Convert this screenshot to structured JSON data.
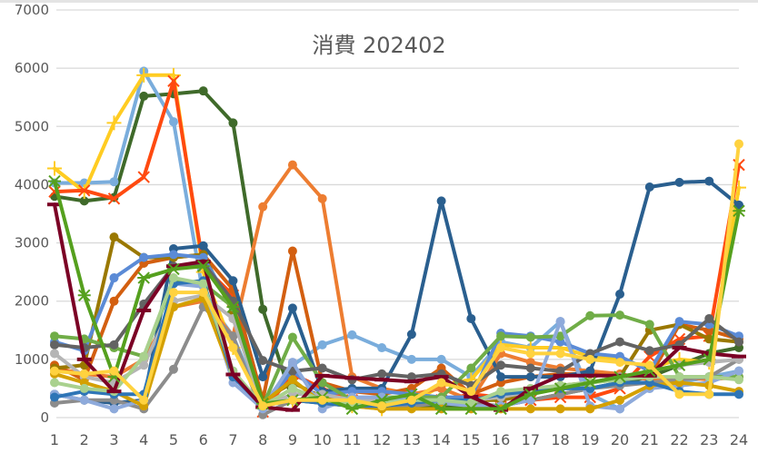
{
  "chart_data": {
    "type": "line",
    "title": "消費 202402",
    "xlabel": "",
    "ylabel": "",
    "ylim": [
      0,
      7000
    ],
    "yticks": [
      0,
      1000,
      2000,
      3000,
      4000,
      5000,
      6000,
      7000
    ],
    "x": [
      1,
      2,
      3,
      4,
      5,
      6,
      7,
      8,
      9,
      10,
      11,
      12,
      13,
      14,
      15,
      16,
      17,
      18,
      19,
      20,
      21,
      22,
      23,
      24
    ],
    "grid": true,
    "legend": "none",
    "series": [
      {
        "name": "s-darkgreen",
        "color": "#3f6a2a",
        "marker": "circle",
        "values": [
          3800,
          3720,
          3780,
          5520,
          5560,
          5610,
          5060,
          1860,
          300,
          250,
          200,
          180,
          200,
          180,
          180,
          200,
          300,
          400,
          500,
          600,
          700,
          900,
          1100,
          1200
        ]
      },
      {
        "name": "s-lightblue",
        "color": "#7aaddc",
        "marker": "circle",
        "values": [
          4030,
          4030,
          4050,
          5950,
          5080,
          2100,
          1400,
          200,
          900,
          1250,
          1420,
          1200,
          1000,
          1000,
          700,
          1300,
          1200,
          1650,
          400,
          150,
          500,
          600,
          700,
          800
        ]
      },
      {
        "name": "s-yellow-plus",
        "color": "#ffcc22",
        "marker": "plus",
        "values": [
          4280,
          3880,
          5060,
          5880,
          5880,
          2500,
          1200,
          250,
          300,
          300,
          200,
          150,
          250,
          550,
          650,
          1250,
          1200,
          1200,
          1050,
          1000,
          850,
          1000,
          950,
          3950
        ]
      },
      {
        "name": "s-redorange-x",
        "color": "#ff4a10",
        "marker": "x",
        "values": [
          3880,
          3900,
          3760,
          4130,
          5780,
          2600,
          2100,
          100,
          750,
          500,
          300,
          300,
          350,
          300,
          400,
          350,
          300,
          350,
          350,
          500,
          1050,
          1350,
          1400,
          4340
        ]
      },
      {
        "name": "s-orange",
        "color": "#ed7d31",
        "marker": "circle",
        "values": [
          850,
          750,
          700,
          1000,
          1900,
          2000,
          1400,
          3620,
          4340,
          3760,
          700,
          500,
          400,
          500,
          300,
          1100,
          950,
          850,
          800,
          750,
          650,
          700,
          650,
          700
        ]
      },
      {
        "name": "s-darkorange",
        "color": "#d35f10",
        "marker": "circle",
        "values": [
          900,
          650,
          2000,
          2650,
          2750,
          2800,
          2200,
          300,
          2860,
          600,
          450,
          400,
          500,
          850,
          400,
          600,
          700,
          750,
          750,
          700,
          700,
          1600,
          1500,
          1350
        ]
      },
      {
        "name": "s-navyblue",
        "color": "#2a5f8f",
        "marker": "circle",
        "values": [
          400,
          300,
          250,
          300,
          2900,
          2950,
          2350,
          700,
          1880,
          450,
          500,
          500,
          1430,
          3720,
          1700,
          700,
          700,
          700,
          800,
          2120,
          3960,
          4040,
          4060,
          3650
        ]
      },
      {
        "name": "s-olive",
        "color": "#9a7800",
        "marker": "circle",
        "values": [
          850,
          900,
          3100,
          2750,
          2750,
          2800,
          1800,
          300,
          600,
          350,
          300,
          300,
          300,
          300,
          300,
          300,
          400,
          550,
          600,
          700,
          1500,
          1600,
          1350,
          1300
        ]
      },
      {
        "name": "s-cornflower",
        "color": "#5b8bd6",
        "marker": "circle",
        "values": [
          1300,
          1150,
          2400,
          2750,
          2800,
          2750,
          1900,
          200,
          800,
          400,
          450,
          450,
          400,
          350,
          350,
          1450,
          1400,
          1300,
          1100,
          1050,
          800,
          1650,
          1600,
          1400
        ]
      },
      {
        "name": "s-midgreen",
        "color": "#70ad47",
        "marker": "circle",
        "values": [
          1400,
          1350,
          1200,
          1050,
          2350,
          2300,
          1900,
          200,
          1380,
          600,
          300,
          350,
          350,
          350,
          850,
          1400,
          1380,
          1400,
          1750,
          1760,
          1600,
          700,
          700,
          700
        ]
      },
      {
        "name": "s-gray",
        "color": "#8c8c8c",
        "marker": "circle",
        "values": [
          250,
          300,
          300,
          150,
          830,
          1900,
          1400,
          50,
          300,
          300,
          200,
          200,
          200,
          250,
          250,
          200,
          300,
          400,
          500,
          550,
          600,
          650,
          700,
          1000
        ]
      },
      {
        "name": "s-darkgray",
        "color": "#636363",
        "marker": "circle",
        "values": [
          1250,
          1200,
          1250,
          1950,
          2600,
          2650,
          2000,
          980,
          800,
          850,
          650,
          750,
          700,
          750,
          550,
          900,
          850,
          800,
          1100,
          1300,
          1150,
          1250,
          1700,
          1300
        ]
      },
      {
        "name": "s-silver",
        "color": "#b5b5b5",
        "marker": "circle",
        "values": [
          1100,
          700,
          600,
          900,
          2000,
          2100,
          1700,
          200,
          400,
          400,
          300,
          300,
          300,
          300,
          300,
          350,
          450,
          500,
          600,
          700,
          800,
          900,
          950,
          1000
        ]
      },
      {
        "name": "s-periwinkle",
        "color": "#8eaadb",
        "marker": "circle",
        "values": [
          400,
          300,
          150,
          300,
          2300,
          2250,
          600,
          150,
          950,
          150,
          350,
          350,
          300,
          250,
          200,
          200,
          300,
          1650,
          200,
          150,
          500,
          550,
          600,
          800
        ]
      },
      {
        "name": "s-gold",
        "color": "#d4a000",
        "marker": "circle",
        "values": [
          750,
          600,
          450,
          200,
          1900,
          2050,
          700,
          250,
          650,
          250,
          200,
          150,
          150,
          150,
          150,
          150,
          150,
          150,
          150,
          300,
          550,
          600,
          550,
          450
        ]
      },
      {
        "name": "s-steelblue",
        "color": "#2e75b6",
        "marker": "circle",
        "values": [
          350,
          450,
          400,
          400,
          2300,
          2350,
          700,
          200,
          300,
          250,
          200,
          200,
          250,
          300,
          300,
          400,
          450,
          500,
          500,
          600,
          600,
          450,
          400,
          400
        ]
      },
      {
        "name": "s-lightgreen",
        "color": "#a9d18e",
        "marker": "circle",
        "values": [
          600,
          500,
          450,
          1050,
          2400,
          2300,
          800,
          200,
          500,
          300,
          250,
          250,
          300,
          300,
          250,
          450,
          500,
          550,
          600,
          650,
          700,
          700,
          700,
          650
        ]
      },
      {
        "name": "s-maroon",
        "color": "#7b0025",
        "marker": "dash",
        "values": [
          3660,
          1000,
          450,
          1840,
          2600,
          2680,
          740,
          180,
          130,
          720,
          680,
          650,
          620,
          700,
          360,
          130,
          500,
          720,
          720,
          720,
          720,
          1200,
          1100,
          1050
        ]
      },
      {
        "name": "s-green-star",
        "color": "#55a01e",
        "marker": "star",
        "values": [
          4060,
          2100,
          700,
          2400,
          2550,
          2600,
          1900,
          240,
          300,
          350,
          150,
          300,
          400,
          150,
          150,
          150,
          400,
          500,
          600,
          700,
          800,
          900,
          1000,
          3550
        ]
      },
      {
        "name": "s-yellow-circle",
        "color": "#ffd23f",
        "marker": "circle",
        "values": [
          800,
          750,
          800,
          300,
          2150,
          2150,
          1200,
          200,
          300,
          300,
          300,
          200,
          300,
          600,
          450,
          1200,
          1100,
          1100,
          1000,
          950,
          900,
          400,
          400,
          4700
        ]
      }
    ]
  }
}
